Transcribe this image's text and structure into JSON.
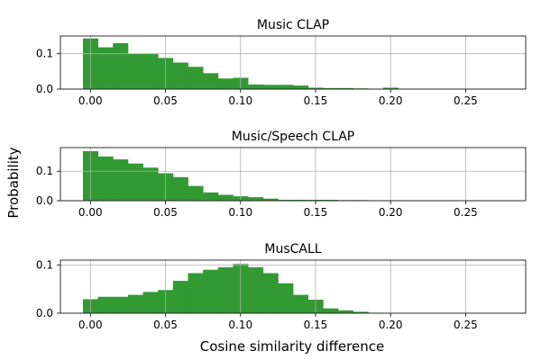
{
  "figure": {
    "ylabel": "Probability",
    "xlabel": "Cosine similarity difference",
    "bar_color": "#339933"
  },
  "chart_data": [
    {
      "type": "bar",
      "title": "Music CLAP",
      "xlim": [
        -0.02,
        0.29
      ],
      "ylim": [
        0,
        0.15
      ],
      "xticks": [
        "0.00",
        "0.05",
        "0.10",
        "0.15",
        "0.20",
        "0.25"
      ],
      "yticks": [
        "0.0",
        "0.1"
      ],
      "bin_width": 0.01,
      "bin_starts": [
        -0.005,
        0.005,
        0.015,
        0.025,
        0.035,
        0.045,
        0.055,
        0.065,
        0.075,
        0.085,
        0.095,
        0.105,
        0.115,
        0.125,
        0.135,
        0.145,
        0.155,
        0.165,
        0.175,
        0.185,
        0.195
      ],
      "values": [
        0.143,
        0.118,
        0.13,
        0.1,
        0.1,
        0.088,
        0.075,
        0.063,
        0.045,
        0.03,
        0.032,
        0.013,
        0.012,
        0.012,
        0.01,
        0.004,
        0.003,
        0.003,
        0.002,
        0.001,
        0.004
      ]
    },
    {
      "type": "bar",
      "title": "Music/Speech CLAP",
      "xlim": [
        -0.02,
        0.29
      ],
      "ylim": [
        0,
        0.18
      ],
      "xticks": [
        "0.00",
        "0.05",
        "0.10",
        "0.15",
        "0.20",
        "0.25"
      ],
      "yticks": [
        "0.0",
        "0.1"
      ],
      "bin_width": 0.01,
      "bin_starts": [
        -0.005,
        0.005,
        0.015,
        0.025,
        0.035,
        0.045,
        0.055,
        0.065,
        0.075,
        0.085,
        0.095,
        0.105,
        0.115,
        0.125,
        0.135,
        0.145,
        0.155,
        0.165,
        0.175,
        0.185
      ],
      "values": [
        0.168,
        0.15,
        0.14,
        0.126,
        0.112,
        0.093,
        0.08,
        0.05,
        0.028,
        0.02,
        0.015,
        0.012,
        0.007,
        0.003,
        0.003,
        0.003,
        0.003,
        0.002,
        0.002,
        0.001
      ]
    },
    {
      "type": "bar",
      "title": "MusCALL",
      "xlim": [
        -0.02,
        0.29
      ],
      "ylim": [
        0,
        0.11
      ],
      "xticks": [
        "0.00",
        "0.05",
        "0.10",
        "0.15",
        "0.20",
        "0.25"
      ],
      "yticks": [
        "0.0",
        "0.1"
      ],
      "bin_width": 0.01,
      "bin_starts": [
        -0.005,
        0.005,
        0.015,
        0.025,
        0.035,
        0.045,
        0.055,
        0.065,
        0.075,
        0.085,
        0.095,
        0.105,
        0.115,
        0.125,
        0.135,
        0.145,
        0.155,
        0.165,
        0.175,
        0.185
      ],
      "values": [
        0.029,
        0.034,
        0.034,
        0.038,
        0.044,
        0.048,
        0.067,
        0.083,
        0.09,
        0.095,
        0.102,
        0.095,
        0.083,
        0.062,
        0.038,
        0.028,
        0.01,
        0.006,
        0.003,
        0.001
      ]
    }
  ]
}
